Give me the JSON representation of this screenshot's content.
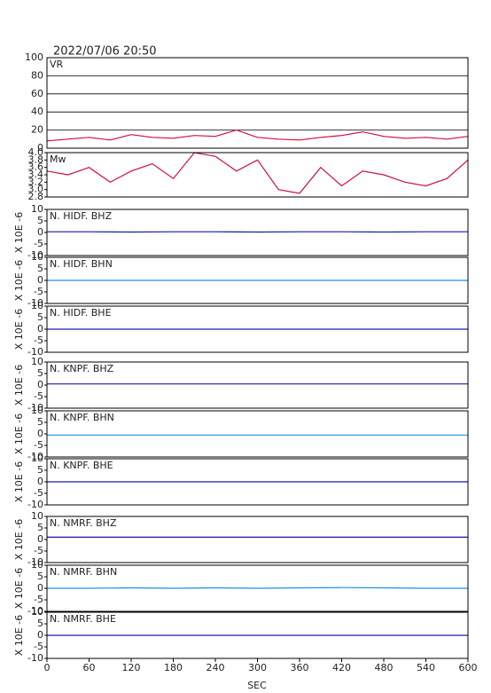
{
  "title": "2022/07/06 20:50",
  "x_axis": {
    "label": "SEC",
    "xlim": [
      0,
      600
    ],
    "xticks": [
      0,
      60,
      120,
      180,
      240,
      300,
      360,
      420,
      480,
      540,
      600
    ]
  },
  "chart_data": [
    {
      "type": "line",
      "x": [
        0,
        30,
        60,
        90,
        120,
        150,
        180,
        210,
        240,
        270,
        300,
        330,
        360,
        390,
        420,
        450,
        480,
        510,
        540,
        570,
        600
      ],
      "ylim": [
        0,
        100
      ],
      "yticks": [
        0,
        20,
        40,
        60,
        80,
        100
      ],
      "grid": true,
      "series": [
        {
          "name": "VR",
          "color": "#d0103a",
          "values": [
            8,
            10,
            12,
            9,
            15,
            12,
            11,
            14,
            13,
            20,
            12,
            10,
            9,
            12,
            14,
            18,
            13,
            11,
            12,
            10,
            13
          ]
        }
      ]
    },
    {
      "type": "line",
      "x": [
        0,
        30,
        60,
        90,
        120,
        150,
        180,
        210,
        240,
        270,
        300,
        330,
        360,
        390,
        420,
        450,
        480,
        510,
        540,
        570,
        600
      ],
      "ylim": [
        2.8,
        4.0
      ],
      "yticks": [
        2.8,
        {
          "value": 3,
          "label": "3.0"
        },
        3.2,
        3.4,
        3.6,
        3.8,
        {
          "value": 4,
          "label": "4.0"
        }
      ],
      "grid": false,
      "series": [
        {
          "name": "Mw",
          "color": "#d0103a",
          "values": [
            3.5,
            3.4,
            3.6,
            3.2,
            3.5,
            3.7,
            3.3,
            4.0,
            3.9,
            3.5,
            3.8,
            3.0,
            2.9,
            3.6,
            3.1,
            3.5,
            3.4,
            3.2,
            3.1,
            3.3,
            3.8
          ]
        }
      ]
    },
    {
      "type": "line",
      "ylabel": "X 10E -6",
      "x": [
        0,
        60,
        120,
        180,
        240,
        300,
        360,
        420,
        480,
        540,
        600
      ],
      "ylim": [
        -10,
        10
      ],
      "yticks": [
        -10,
        -5,
        0,
        5,
        10
      ],
      "grid": false,
      "series": [
        {
          "name": "N. HIDF. BHZ",
          "color": "#1a1aa0",
          "values": [
            0.3,
            0.3,
            0.2,
            0.3,
            0.3,
            0.2,
            0.3,
            0.3,
            0.2,
            0.3,
            0.3
          ]
        }
      ]
    },
    {
      "type": "line",
      "ylabel": "X 10E -6",
      "x": [
        0,
        60,
        120,
        180,
        240,
        300,
        360,
        420,
        480,
        540,
        600
      ],
      "ylim": [
        -10,
        10
      ],
      "yticks": [
        -10,
        -5,
        0,
        5,
        10
      ],
      "grid": false,
      "series": [
        {
          "name": "N. HIDF. BHN",
          "color": "#1e90e0",
          "values": [
            0,
            0,
            0,
            0,
            0,
            0,
            0,
            0,
            0,
            0,
            0
          ]
        }
      ]
    },
    {
      "type": "line",
      "ylabel": "X 10E -6",
      "x": [
        0,
        60,
        120,
        180,
        240,
        300,
        360,
        420,
        480,
        540,
        600
      ],
      "ylim": [
        -10,
        10
      ],
      "yticks": [
        -10,
        -5,
        0,
        5,
        10
      ],
      "grid": false,
      "series": [
        {
          "name": "N. HIDF. BHE",
          "color": "#1a1aa0",
          "values": [
            0,
            0,
            0,
            0,
            0,
            0,
            0,
            0,
            0,
            0,
            0
          ]
        }
      ]
    },
    {
      "type": "line",
      "ylabel": "X 10E -6",
      "x": [
        0,
        60,
        120,
        180,
        240,
        300,
        360,
        420,
        480,
        540,
        600
      ],
      "ylim": [
        -10,
        10
      ],
      "yticks": [
        -10,
        -5,
        0,
        5,
        10
      ],
      "grid": false,
      "series": [
        {
          "name": "N. KNPF. BHZ",
          "color": "#1a1aa0",
          "values": [
            0.5,
            0.5,
            0.5,
            0.5,
            0.5,
            0.5,
            0.5,
            0.5,
            0.5,
            0.5,
            0.5
          ]
        }
      ]
    },
    {
      "type": "line",
      "ylabel": "X 10E -6",
      "x": [
        0,
        60,
        120,
        180,
        240,
        300,
        360,
        420,
        480,
        540,
        600
      ],
      "ylim": [
        -10,
        10
      ],
      "yticks": [
        -10,
        -5,
        0,
        5,
        10
      ],
      "grid": false,
      "series": [
        {
          "name": "N. KNPF. BHN",
          "color": "#1e90e0",
          "values": [
            -0.5,
            -0.5,
            -0.5,
            -0.5,
            -0.5,
            -0.5,
            -0.5,
            -0.5,
            -0.5,
            -0.5,
            -0.5
          ]
        }
      ]
    },
    {
      "type": "line",
      "ylabel": "X 10E -6",
      "x": [
        0,
        60,
        120,
        180,
        240,
        300,
        360,
        420,
        480,
        540,
        600
      ],
      "ylim": [
        -10,
        10
      ],
      "yticks": [
        -10,
        -5,
        0,
        5,
        10
      ],
      "grid": false,
      "series": [
        {
          "name": "N. KNPF. BHE",
          "color": "#1a1aa0",
          "values": [
            0,
            0,
            0,
            0,
            0,
            0,
            0,
            0,
            0,
            0,
            0
          ]
        }
      ]
    },
    {
      "type": "line",
      "ylabel": "X 10E -6",
      "x": [
        0,
        60,
        120,
        180,
        240,
        300,
        360,
        420,
        480,
        540,
        600
      ],
      "ylim": [
        -10,
        10
      ],
      "yticks": [
        -10,
        -5,
        0,
        5,
        10
      ],
      "grid": false,
      "series": [
        {
          "name": "N. NMRF. BHZ",
          "color": "#1a1aa0",
          "values": [
            1,
            1,
            1,
            1,
            1,
            1,
            1,
            1,
            1,
            1,
            1
          ]
        }
      ]
    },
    {
      "type": "line",
      "ylabel": "X 10E -6",
      "x": [
        0,
        60,
        120,
        180,
        240,
        300,
        360,
        420,
        480,
        540,
        600
      ],
      "ylim": [
        -10,
        10
      ],
      "yticks": [
        -10,
        -5,
        0,
        5,
        10
      ],
      "grid": false,
      "series": [
        {
          "name": "N. NMRF. BHN",
          "color": "#1e90e0",
          "values": [
            0,
            0,
            0.2,
            0,
            0.2,
            0,
            0.2,
            0.3,
            0.2,
            0,
            0
          ]
        }
      ]
    },
    {
      "type": "line",
      "ylabel": "X 10E -6",
      "x": [
        0,
        60,
        120,
        180,
        240,
        300,
        360,
        420,
        480,
        540,
        600
      ],
      "ylim": [
        -10,
        10
      ],
      "yticks": [
        -10,
        -5,
        0,
        5,
        10
      ],
      "grid": false,
      "series": [
        {
          "name": "N. NMRF. BHE",
          "color": "#1a1aa0",
          "values": [
            0,
            0,
            0,
            0,
            0,
            0,
            0,
            0,
            0,
            0,
            0
          ]
        }
      ]
    }
  ]
}
